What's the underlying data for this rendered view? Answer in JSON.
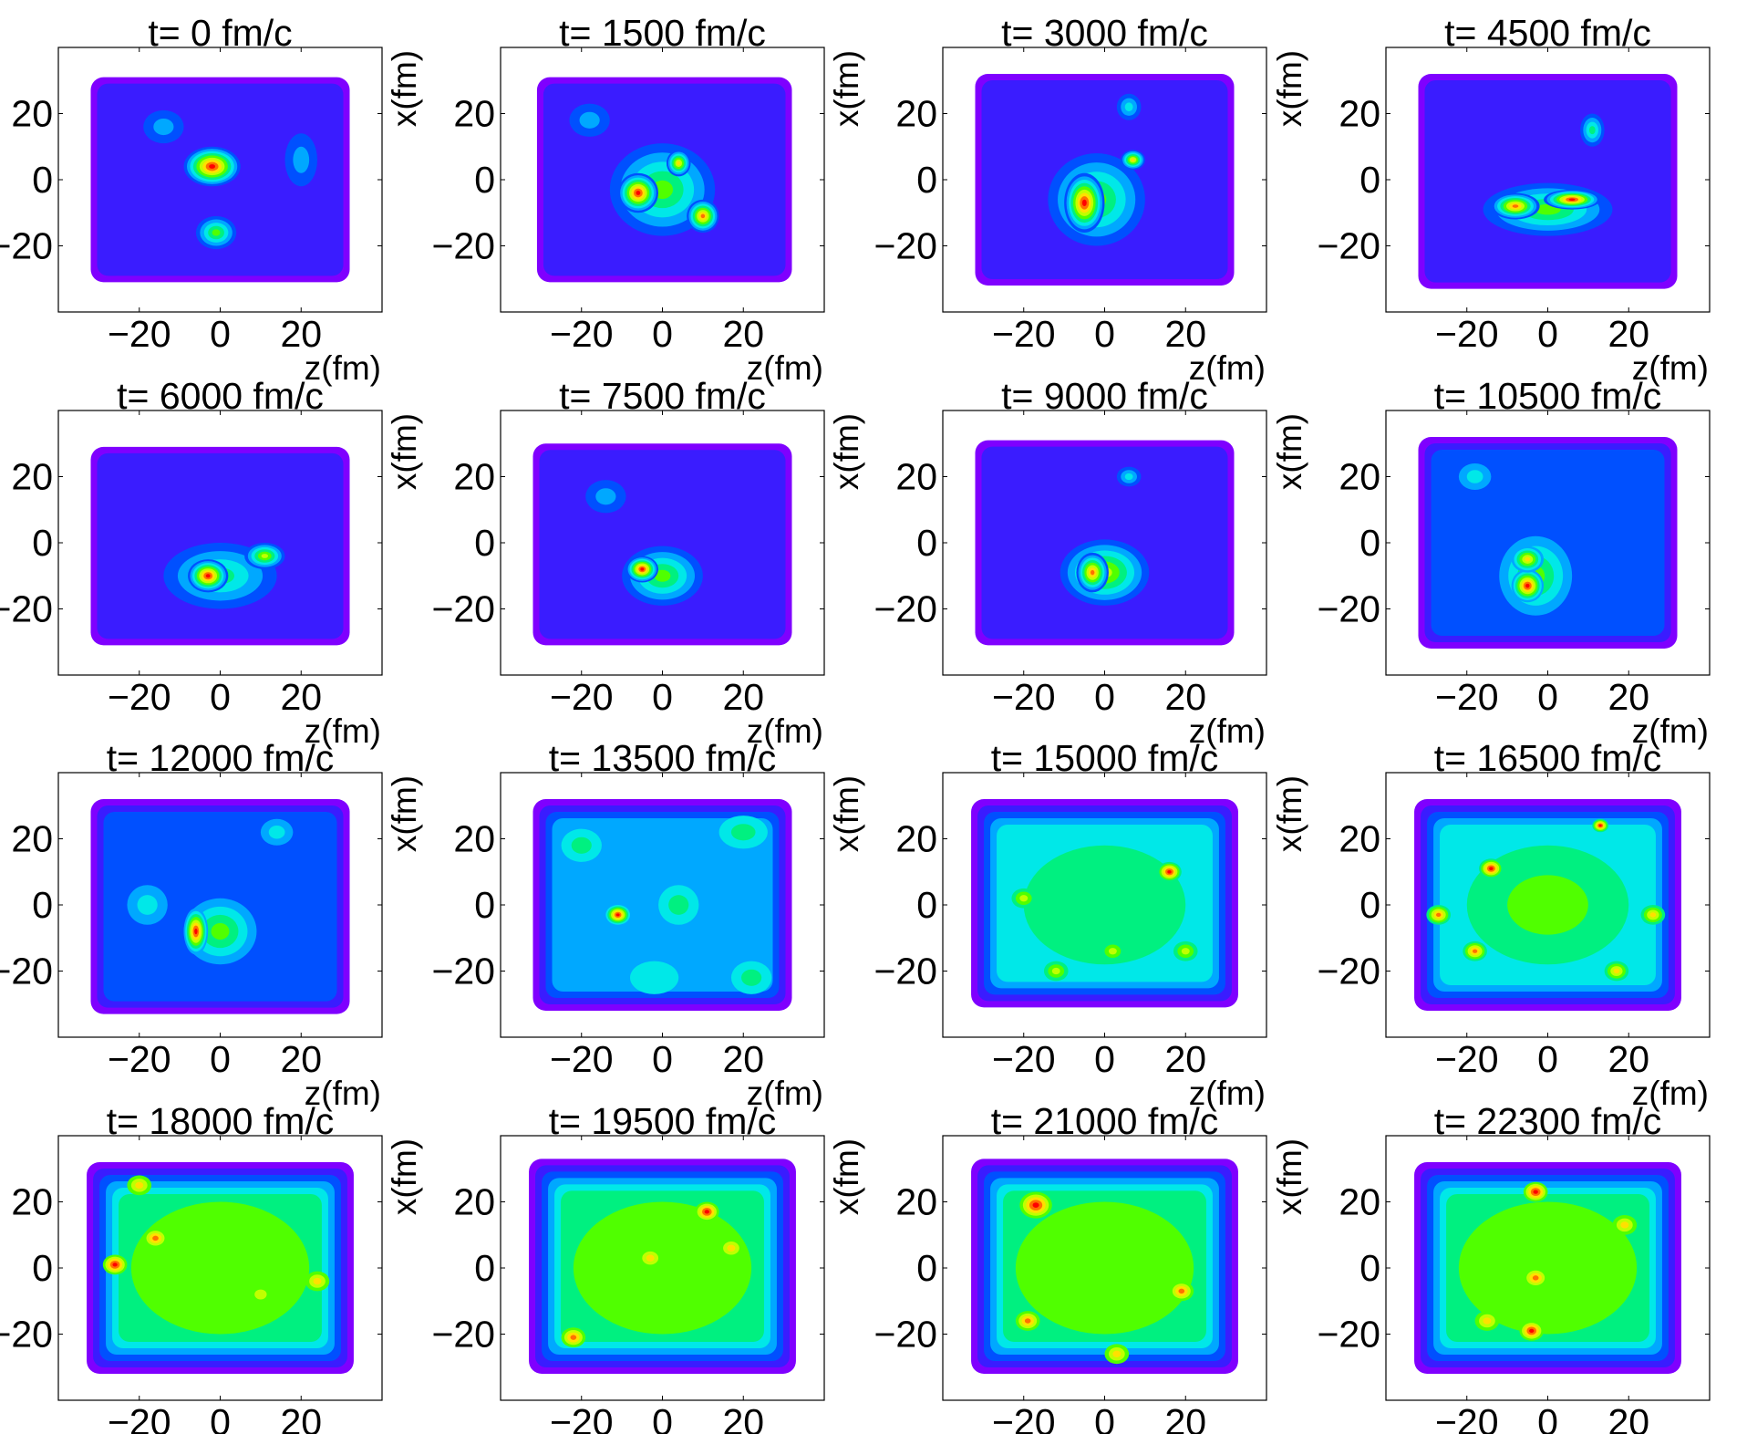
{
  "chart_data": {
    "type": "heatmap",
    "layout": "4x4 grid of contour density maps",
    "xlabel": "z(fm)",
    "ylabel": "x(fm)",
    "xlim": [
      -40,
      40
    ],
    "ylim": [
      -40,
      40
    ],
    "xticks": [
      "−20",
      "0",
      "20"
    ],
    "yticks": [
      "20",
      "0",
      "−20"
    ],
    "x_tick_values": [
      -20,
      0,
      20
    ],
    "y_tick_values": [
      20,
      0,
      -20
    ],
    "colormap": [
      "#7f00ff",
      "#3a1cff",
      "#0050ff",
      "#00a8ff",
      "#00e8e8",
      "#00f080",
      "#50ff00",
      "#c0ff00",
      "#ffe000",
      "#ff7000",
      "#ff0000"
    ],
    "panels": [
      {
        "title": "t= 0 fm/c",
        "box": [
          -32,
          32,
          -31,
          31
        ],
        "base": 1,
        "blobs": [
          [
            -2,
            4,
            7,
            6,
            10
          ],
          [
            -1,
            -16,
            5,
            5,
            6
          ],
          [
            -14,
            16,
            5,
            5,
            3
          ],
          [
            20,
            6,
            4,
            8,
            3
          ]
        ]
      },
      {
        "title": "t= 1500 fm/c",
        "box": [
          -31,
          32,
          -31,
          31
        ],
        "base": 1,
        "blobs": [
          [
            -6,
            -4,
            5,
            6,
            10
          ],
          [
            10,
            -11,
            4,
            5,
            9
          ],
          [
            4,
            5,
            3,
            4,
            8
          ],
          [
            0,
            -3,
            13,
            14,
            6
          ],
          [
            -18,
            18,
            5,
            5,
            3
          ]
        ]
      },
      {
        "title": "t= 3000 fm/c",
        "box": [
          -32,
          32,
          -32,
          32
        ],
        "base": 1,
        "blobs": [
          [
            -5,
            -7,
            5,
            9,
            10
          ],
          [
            7,
            6,
            3,
            3,
            8
          ],
          [
            -2,
            -6,
            12,
            14,
            6
          ],
          [
            6,
            22,
            3,
            4,
            4
          ]
        ]
      },
      {
        "title": "t= 4500 fm/c",
        "box": [
          -32,
          32,
          -33,
          32
        ],
        "base": 1,
        "blobs": [
          [
            6,
            -6,
            7,
            3,
            10
          ],
          [
            -8,
            -8,
            6,
            4,
            9
          ],
          [
            0,
            -9,
            16,
            8,
            6
          ],
          [
            11,
            15,
            3,
            5,
            5
          ]
        ]
      },
      {
        "title": "t= 6000 fm/c",
        "box": [
          -32,
          32,
          -31,
          29
        ],
        "base": 1,
        "blobs": [
          [
            -3,
            -10,
            5,
            5,
            10
          ],
          [
            11,
            -4,
            5,
            4,
            7
          ],
          [
            0,
            -10,
            14,
            10,
            5
          ]
        ]
      },
      {
        "title": "t= 7500 fm/c",
        "box": [
          -32,
          32,
          -31,
          30
        ],
        "base": 1,
        "blobs": [
          [
            -5,
            -8,
            4,
            4,
            10
          ],
          [
            0,
            -10,
            10,
            9,
            6
          ],
          [
            -14,
            14,
            5,
            5,
            3
          ]
        ]
      },
      {
        "title": "t= 9000 fm/c",
        "box": [
          -32,
          32,
          -31,
          31
        ],
        "base": 1,
        "blobs": [
          [
            -3,
            -9,
            4,
            6,
            9
          ],
          [
            0,
            -9,
            11,
            10,
            7
          ],
          [
            6,
            20,
            3,
            3,
            4
          ]
        ]
      },
      {
        "title": "t= 10500 fm/c",
        "box": [
          -32,
          32,
          -32,
          32
        ],
        "base": 2,
        "blobs": [
          [
            -5,
            -13,
            4,
            5,
            10
          ],
          [
            -5,
            -5,
            4,
            4,
            8
          ],
          [
            -3,
            -10,
            9,
            12,
            6
          ],
          [
            -18,
            20,
            4,
            4,
            4
          ]
        ]
      },
      {
        "title": "t= 12000 fm/c",
        "box": [
          -32,
          32,
          -33,
          32
        ],
        "base": 2,
        "blobs": [
          [
            -6,
            -8,
            3,
            7,
            10
          ],
          [
            0,
            -8,
            9,
            10,
            6
          ],
          [
            -18,
            0,
            5,
            6,
            4
          ],
          [
            14,
            22,
            4,
            4,
            4
          ]
        ]
      },
      {
        "title": "t= 13500 fm/c",
        "box": [
          -32,
          32,
          -32,
          32
        ],
        "base": 3,
        "blobs": [
          [
            -11,
            -3,
            3,
            3,
            10
          ],
          [
            4,
            0,
            5,
            6,
            5
          ],
          [
            -20,
            18,
            5,
            5,
            5
          ],
          [
            20,
            22,
            6,
            5,
            5
          ],
          [
            22,
            -22,
            5,
            5,
            5
          ],
          [
            -2,
            -22,
            6,
            5,
            4
          ]
        ]
      },
      {
        "title": "t= 15000 fm/c",
        "box": [
          -33,
          33,
          -31,
          32
        ],
        "base": 4,
        "blobs": [
          [
            16,
            10,
            3,
            3,
            10
          ],
          [
            -20,
            2,
            3,
            3,
            7
          ],
          [
            2,
            -14,
            3,
            3,
            7
          ],
          [
            -12,
            -20,
            3,
            3,
            7
          ],
          [
            20,
            -14,
            3,
            3,
            7
          ],
          [
            0,
            0,
            20,
            18,
            5
          ]
        ]
      },
      {
        "title": "t= 16500 fm/c",
        "box": [
          -33,
          33,
          -32,
          32
        ],
        "base": 4,
        "blobs": [
          [
            -14,
            11,
            3,
            3,
            10
          ],
          [
            13,
            24,
            2,
            2,
            10
          ],
          [
            -27,
            -3,
            3,
            3,
            9
          ],
          [
            -18,
            -14,
            3,
            3,
            9
          ],
          [
            26,
            -3,
            3,
            3,
            8
          ],
          [
            17,
            -20,
            3,
            3,
            8
          ],
          [
            0,
            0,
            20,
            18,
            6
          ]
        ]
      },
      {
        "title": "t= 18000 fm/c",
        "box": [
          -33,
          33,
          -32,
          32
        ],
        "base": 5,
        "blobs": [
          [
            -26,
            1,
            3,
            3,
            10
          ],
          [
            -16,
            9,
            3,
            3,
            9
          ],
          [
            -20,
            25,
            3,
            3,
            8
          ],
          [
            24,
            -4,
            3,
            3,
            8
          ],
          [
            10,
            -8,
            3,
            3,
            7
          ],
          [
            0,
            0,
            22,
            20,
            6
          ]
        ]
      },
      {
        "title": "t= 19500 fm/c",
        "box": [
          -33,
          33,
          -32,
          33
        ],
        "base": 5,
        "blobs": [
          [
            11,
            17,
            3,
            3,
            10
          ],
          [
            -22,
            -21,
            3,
            3,
            9
          ],
          [
            -3,
            3,
            3,
            3,
            8
          ],
          [
            17,
            6,
            3,
            3,
            8
          ],
          [
            0,
            0,
            22,
            20,
            6
          ]
        ]
      },
      {
        "title": "t= 21000 fm/c",
        "box": [
          -33,
          33,
          -32,
          33
        ],
        "base": 5,
        "blobs": [
          [
            -17,
            19,
            4,
            4,
            10
          ],
          [
            -19,
            -16,
            3,
            3,
            9
          ],
          [
            19,
            -7,
            3,
            3,
            9
          ],
          [
            3,
            -26,
            3,
            3,
            8
          ],
          [
            0,
            0,
            22,
            20,
            6
          ]
        ]
      },
      {
        "title": "t= 22300 fm/c",
        "box": [
          -33,
          33,
          -32,
          32
        ],
        "base": 5,
        "blobs": [
          [
            -3,
            23,
            3,
            3,
            10
          ],
          [
            -4,
            -19,
            3,
            3,
            10
          ],
          [
            -3,
            -3,
            3,
            3,
            9
          ],
          [
            19,
            13,
            3,
            3,
            8
          ],
          [
            -15,
            -16,
            3,
            3,
            8
          ],
          [
            0,
            0,
            22,
            20,
            6
          ]
        ]
      }
    ]
  }
}
